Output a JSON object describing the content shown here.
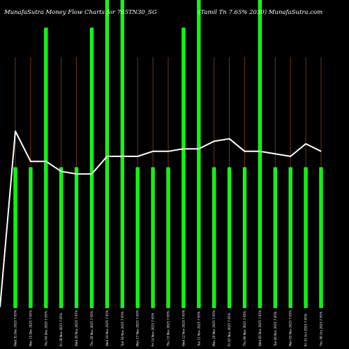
{
  "chart_data": {
    "type": "bar",
    "title_left": "MunafaSutra  Money Flow  Charts for 765TN30_SG",
    "title_right": "(Tamil Tn  7.65% 2030) MunafaSutra.com",
    "categories": [
      "Wed 31 Dec 2025 7.65%",
      "Mon 15 Dec 2025 7.65%",
      "Thu 04 Dec 2025 7.65%",
      "Fri 28 Nov 2025 7.65%",
      "Wed 26 Nov 2025 7.65%",
      "Thu 20 Nov 2025 7.65%",
      "Wed 19 Nov 2025 7.65%",
      "Tue 18 Nov 2025 7.65%",
      "Mon 17 Nov 2025 7.65%",
      "Fri 14 Nov 2025 7.65%",
      "Thu 13 Nov 2025 7.65%",
      "Wed 12 Nov 2025 7.65%",
      "Tue 11 Nov 2025 7.65%",
      "Mon 10 Nov 2025 7.65%",
      "Fri 07 Nov 2025 7.65%",
      "Thu 06 Nov 2025 7.65%",
      "Wed 05 Nov 2025 7.65%",
      "Tue 04 Nov 2025 7.65%",
      "Mon 03 Nov 2025 7.65%",
      "Fri 31 Oct 2025 7.65%",
      "Thu 30 Oct 2025 7.65%"
    ],
    "series": [
      {
        "values": [
          1,
          1,
          2,
          1,
          1,
          2,
          3,
          3,
          1,
          1,
          1,
          2,
          3,
          1,
          1,
          1,
          3,
          1,
          1,
          1,
          1
        ]
      },
      {
        "values": [
          0.2,
          0.58,
          0.58,
          0.54,
          0.53,
          0.53,
          0.6,
          0.6,
          0.6,
          0.62,
          0.62,
          0.63,
          0.63,
          0.66,
          0.67,
          0.62,
          0.62,
          0.61,
          0.6,
          0.65,
          0.62
        ]
      }
    ],
    "colors": {
      "background": "#000000",
      "bar": "#00ff00",
      "bar_edge": "#66ff66",
      "line": "#ffffff",
      "gridline": "#8b4513"
    },
    "grid": true,
    "legend": "none"
  }
}
